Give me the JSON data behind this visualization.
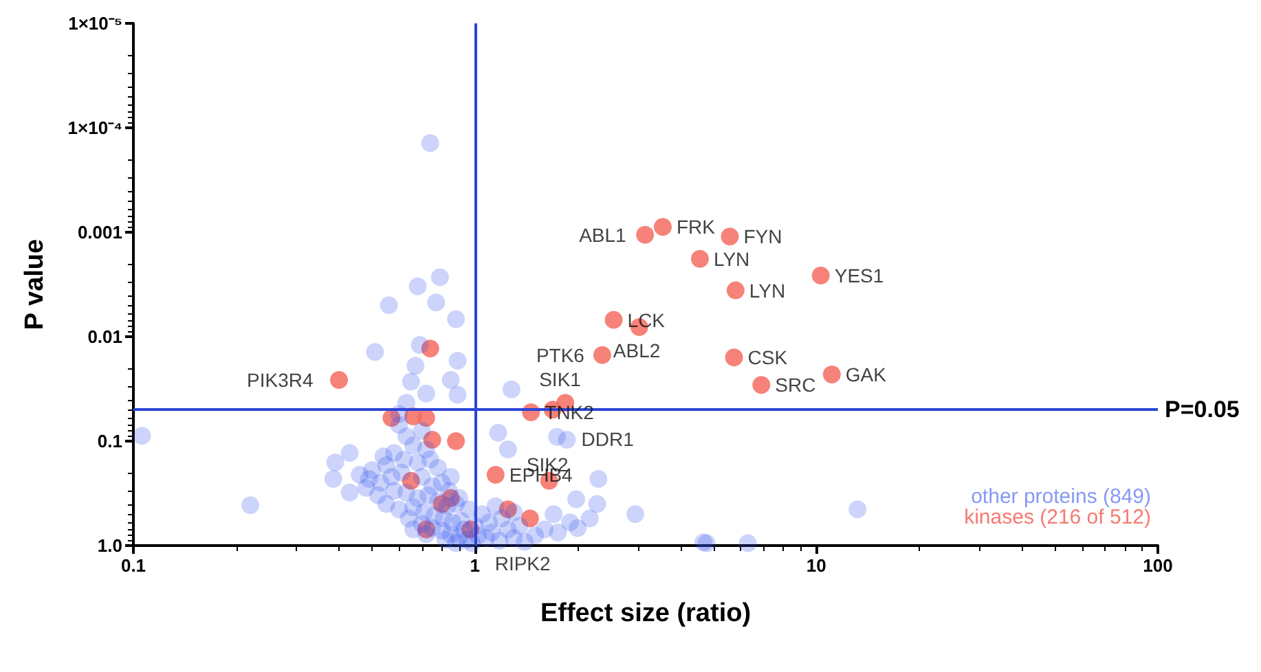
{
  "chart_data": {
    "type": "scatter",
    "xlabel": "Effect size (ratio)",
    "ylabel": "P value",
    "log": "xy",
    "xlim": [
      0.1,
      100
    ],
    "ylim": [
      1.0,
      1e-05
    ],
    "xticks": [
      0.1,
      1,
      10,
      100
    ],
    "yticks": [
      {
        "value": 1e-05,
        "label": "1×10⁻⁵"
      },
      {
        "value": 0.0001,
        "label": "1×10⁻⁴"
      },
      0.001,
      0.01,
      0.1,
      {
        "value": 1,
        "label": "1.0"
      }
    ],
    "grid": false,
    "legend": "bottom right",
    "marker": "circle",
    "ref_lines": [
      {
        "axis": "x",
        "value": 1,
        "label": null,
        "color": "#2a44d6"
      },
      {
        "axis": "y",
        "value": 0.05,
        "label": "P=0.05",
        "color": "#2a44d6"
      }
    ],
    "series": [
      {
        "name": "other proteins (849)",
        "color": "#3355ee",
        "x": [
          0.74,
          0.79,
          0.68,
          0.77,
          0.56,
          0.88,
          0.69,
          0.51,
          0.89,
          0.67,
          0.65,
          0.85,
          0.89,
          0.63,
          0.106,
          0.43,
          0.39,
          0.385,
          0.22,
          0.49,
          0.43,
          0.54,
          1.28,
          1.17,
          1.25,
          1.74,
          1.86,
          2.3,
          1.98,
          2.17,
          2.95,
          2.28,
          4.67,
          4.77,
          6.3,
          13.2,
          0.6,
          0.63,
          0.66,
          0.7,
          0.72,
          0.58,
          0.62,
          0.68,
          0.74,
          0.78,
          0.55,
          0.5,
          0.46,
          0.53,
          0.57,
          0.61,
          0.7,
          0.75,
          0.8,
          0.84,
          0.48,
          0.52,
          0.58,
          0.63,
          0.68,
          0.73,
          0.78,
          0.83,
          0.88,
          0.55,
          0.6,
          0.66,
          0.71,
          0.76,
          0.81,
          0.86,
          0.91,
          0.64,
          0.7,
          0.75,
          0.8,
          0.85,
          0.9,
          0.95,
          0.98,
          0.93,
          1.02,
          1.08,
          1.12,
          1.18,
          1.25,
          1.3,
          1.4,
          1.1,
          1.2,
          1.35,
          1.5,
          1.6,
          1.75,
          1.9,
          1.05,
          1.15,
          1.3,
          1.7,
          2.0,
          0.88,
          0.82,
          0.72,
          0.66,
          1.0,
          0.96,
          0.9,
          0.85,
          0.72,
          0.6
        ],
        "values": [
          0.00014,
          0.0027,
          0.0033,
          0.0047,
          0.005,
          0.0068,
          0.012,
          0.014,
          0.017,
          0.019,
          0.027,
          0.026,
          0.036,
          0.043,
          0.089,
          0.13,
          0.16,
          0.23,
          0.41,
          0.23,
          0.31,
          0.14,
          0.032,
          0.083,
          0.12,
          0.091,
          0.097,
          0.23,
          0.36,
          0.55,
          0.5,
          0.4,
          0.93,
          0.95,
          0.95,
          0.45,
          0.07,
          0.09,
          0.11,
          0.08,
          0.12,
          0.13,
          0.15,
          0.16,
          0.15,
          0.18,
          0.17,
          0.19,
          0.21,
          0.25,
          0.22,
          0.2,
          0.22,
          0.27,
          0.25,
          0.3,
          0.28,
          0.33,
          0.3,
          0.31,
          0.35,
          0.33,
          0.38,
          0.42,
          0.4,
          0.4,
          0.45,
          0.43,
          0.48,
          0.52,
          0.55,
          0.6,
          0.58,
          0.55,
          0.62,
          0.68,
          0.72,
          0.78,
          0.83,
          0.88,
          0.95,
          0.7,
          0.8,
          0.85,
          0.75,
          0.9,
          0.7,
          0.85,
          0.92,
          0.6,
          0.55,
          0.65,
          0.8,
          0.7,
          0.75,
          0.6,
          0.5,
          0.42,
          0.48,
          0.5,
          0.68,
          0.95,
          0.88,
          0.78,
          0.7,
          0.65,
          0.45,
          0.35,
          0.22,
          0.035,
          0.055
        ]
      },
      {
        "name": "kinases (216 of 512)",
        "color": "#f56c62",
        "x": [
          3.55,
          3.15,
          5.58,
          4.56,
          5.8,
          10.3,
          2.55,
          3.03,
          2.36,
          5.74,
          6.9,
          11.1,
          1.84,
          1.69,
          1.46,
          0.4,
          1.65,
          1.15,
          0.97,
          0.74,
          0.57,
          0.66,
          0.72,
          0.75,
          0.88,
          0.65,
          0.8,
          1.25,
          1.45,
          0.72,
          0.85
        ],
        "values": [
          0.00089,
          0.00106,
          0.0011,
          0.0018,
          0.0036,
          0.0026,
          0.0069,
          0.0081,
          0.015,
          0.0158,
          0.029,
          0.023,
          0.043,
          0.05,
          0.053,
          0.026,
          0.24,
          0.21,
          0.7,
          0.013,
          0.06,
          0.058,
          0.06,
          0.097,
          0.1,
          0.24,
          0.4,
          0.45,
          0.55,
          0.7,
          0.35
        ]
      }
    ],
    "annotations": [
      {
        "text": "FRK",
        "x": 3.55,
        "y": 0.00089
      },
      {
        "text": "ABL1",
        "x": 3.15,
        "y": 0.00106
      },
      {
        "text": "FYN",
        "x": 5.58,
        "y": 0.0011
      },
      {
        "text": "LYN",
        "x": 4.56,
        "y": 0.0018
      },
      {
        "text": "LYN",
        "x": 5.8,
        "y": 0.0036
      },
      {
        "text": "YES1",
        "x": 10.3,
        "y": 0.0026
      },
      {
        "text": "LCK",
        "x": 2.55,
        "y": 0.0069
      },
      {
        "text": "ABL2",
        "x": 3.03,
        "y": 0.0081
      },
      {
        "text": "PTK6",
        "x": 2.36,
        "y": 0.015
      },
      {
        "text": "CSK",
        "x": 5.74,
        "y": 0.0158
      },
      {
        "text": "SRC",
        "x": 6.9,
        "y": 0.029
      },
      {
        "text": "GAK",
        "x": 11.1,
        "y": 0.023
      },
      {
        "text": "SIK1",
        "x": 1.84,
        "y": 0.043
      },
      {
        "text": "SIK2",
        "x": 1.69,
        "y": 0.05
      },
      {
        "text": "TNK2",
        "x": 1.46,
        "y": 0.053
      },
      {
        "text": "PIK3R4",
        "x": 0.4,
        "y": 0.026
      },
      {
        "text": "DDR1",
        "x": 1.65,
        "y": 0.24
      },
      {
        "text": "EPHB4",
        "x": 1.15,
        "y": 0.21
      },
      {
        "text": "RIPK2",
        "x": 0.97,
        "y": 0.7
      }
    ]
  }
}
